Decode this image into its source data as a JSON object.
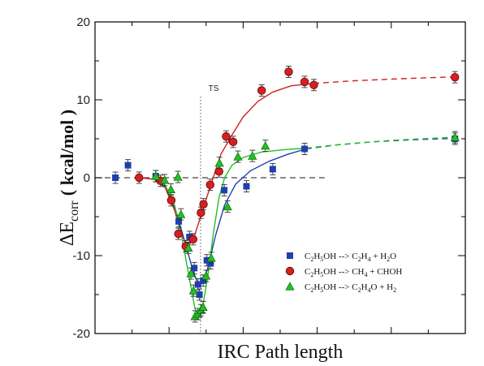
{
  "chart_data": {
    "type": "scatter",
    "title": "",
    "xlabel": "IRC Path length",
    "ylabel": {
      "prefix": "ΔE",
      "sub": "corr",
      "unit": "( kcal/mol )"
    },
    "xlim": [
      0,
      100
    ],
    "ylim": [
      -20,
      20
    ],
    "yticks": [
      -20,
      -10,
      0,
      10,
      20
    ],
    "x_ticks_labeled": false,
    "grid": false,
    "legend_position": "bottom-right",
    "reference_line": {
      "y": 0,
      "style": "dashed",
      "x_end": 62
    },
    "ts_line": {
      "x": 28.5,
      "label": "TS"
    },
    "series": [
      {
        "name": "C2H5OH --> C2H4 + H2O",
        "legend_parts": [
          {
            "t": "C"
          },
          {
            "t": "2",
            "sub": true
          },
          {
            "t": "H"
          },
          {
            "t": "5",
            "sub": true
          },
          {
            "t": "OH --> C"
          },
          {
            "t": "2",
            "sub": true
          },
          {
            "t": "H"
          },
          {
            "t": "4",
            "sub": true
          },
          {
            "t": " + H"
          },
          {
            "t": "2",
            "sub": true
          },
          {
            "t": "O"
          }
        ],
        "color": "#1f3fb0",
        "marker": "square",
        "points": [
          {
            "x": 5.5,
            "y": 0.0
          },
          {
            "x": 8.9,
            "y": 1.6
          },
          {
            "x": 16.4,
            "y": 0.2
          },
          {
            "x": 22.6,
            "y": -5.6
          },
          {
            "x": 25.5,
            "y": -7.6
          },
          {
            "x": 26.8,
            "y": -11.6
          },
          {
            "x": 27.8,
            "y": -13.7
          },
          {
            "x": 28.2,
            "y": -15.0
          },
          {
            "x": 29.2,
            "y": -13.2
          },
          {
            "x": 30.2,
            "y": -10.6
          },
          {
            "x": 31.2,
            "y": -11.0
          },
          {
            "x": 34.9,
            "y": -1.6
          },
          {
            "x": 40.9,
            "y": -1.1
          },
          {
            "x": 48.0,
            "y": 1.1
          },
          {
            "x": 56.6,
            "y": 3.7
          },
          {
            "x": 97.2,
            "y": 5.0
          }
        ],
        "fit": [
          {
            "x": 16.0,
            "y": -0.1
          },
          {
            "x": 19.0,
            "y": -1.2
          },
          {
            "x": 22.0,
            "y": -4.5
          },
          {
            "x": 24.5,
            "y": -8.6
          },
          {
            "x": 26.5,
            "y": -12.0
          },
          {
            "x": 28.0,
            "y": -13.8
          },
          {
            "x": 29.2,
            "y": -13.5
          },
          {
            "x": 30.5,
            "y": -11.5
          },
          {
            "x": 32.5,
            "y": -7.5
          },
          {
            "x": 35.0,
            "y": -3.5
          },
          {
            "x": 38.0,
            "y": -0.8
          },
          {
            "x": 42.0,
            "y": 0.9
          },
          {
            "x": 47.0,
            "y": 2.1
          },
          {
            "x": 52.0,
            "y": 3.0
          },
          {
            "x": 57.0,
            "y": 3.7
          }
        ],
        "fit_ext": [
          {
            "x": 57.0,
            "y": 3.7
          },
          {
            "x": 65.0,
            "y": 4.2
          },
          {
            "x": 75.0,
            "y": 4.6
          },
          {
            "x": 85.0,
            "y": 4.85
          },
          {
            "x": 97.0,
            "y": 5.05
          }
        ]
      },
      {
        "name": "C2H5OH --> CH4 + CHOH",
        "legend_parts": [
          {
            "t": "C"
          },
          {
            "t": "2",
            "sub": true
          },
          {
            "t": "H"
          },
          {
            "t": "5",
            "sub": true
          },
          {
            "t": "OH --> CH"
          },
          {
            "t": "4",
            "sub": true
          },
          {
            "t": " + CHOH"
          }
        ],
        "color": "#d42020",
        "marker": "circle",
        "points": [
          {
            "x": 11.9,
            "y": 0.0
          },
          {
            "x": 17.7,
            "y": -0.4
          },
          {
            "x": 20.6,
            "y": -2.9
          },
          {
            "x": 22.5,
            "y": -7.2
          },
          {
            "x": 24.5,
            "y": -8.8
          },
          {
            "x": 26.5,
            "y": -7.9
          },
          {
            "x": 28.6,
            "y": -4.5
          },
          {
            "x": 29.3,
            "y": -3.4
          },
          {
            "x": 31.1,
            "y": -0.9
          },
          {
            "x": 33.5,
            "y": 0.8
          },
          {
            "x": 35.4,
            "y": 5.3
          },
          {
            "x": 37.3,
            "y": 4.6
          },
          {
            "x": 45.0,
            "y": 11.2
          },
          {
            "x": 52.3,
            "y": 13.6
          },
          {
            "x": 56.6,
            "y": 12.3
          },
          {
            "x": 59.1,
            "y": 11.9
          },
          {
            "x": 97.2,
            "y": 12.9
          }
        ],
        "fit": [
          {
            "x": 12.0,
            "y": 0.0
          },
          {
            "x": 16.0,
            "y": -0.2
          },
          {
            "x": 19.0,
            "y": -1.3
          },
          {
            "x": 21.5,
            "y": -4.2
          },
          {
            "x": 23.5,
            "y": -7.5
          },
          {
            "x": 25.0,
            "y": -8.8
          },
          {
            "x": 26.5,
            "y": -8.0
          },
          {
            "x": 28.5,
            "y": -5.0
          },
          {
            "x": 31.0,
            "y": -1.3
          },
          {
            "x": 34.0,
            "y": 3.0
          },
          {
            "x": 37.0,
            "y": 5.5
          },
          {
            "x": 40.0,
            "y": 7.8
          },
          {
            "x": 44.0,
            "y": 9.8
          },
          {
            "x": 48.0,
            "y": 11.0
          },
          {
            "x": 53.0,
            "y": 11.8
          },
          {
            "x": 59.0,
            "y": 12.1
          }
        ],
        "fit_ext": [
          {
            "x": 59.0,
            "y": 12.1
          },
          {
            "x": 70.0,
            "y": 12.45
          },
          {
            "x": 82.0,
            "y": 12.7
          },
          {
            "x": 97.0,
            "y": 12.95
          }
        ]
      },
      {
        "name": "C2H5OH --> C2H4O + H2",
        "legend_parts": [
          {
            "t": "C"
          },
          {
            "t": "2",
            "sub": true
          },
          {
            "t": "H"
          },
          {
            "t": "5",
            "sub": true
          },
          {
            "t": "OH --> C"
          },
          {
            "t": "2",
            "sub": true
          },
          {
            "t": "H"
          },
          {
            "t": "4",
            "sub": true
          },
          {
            "t": "O + H"
          },
          {
            "t": "2",
            "sub": true
          }
        ],
        "color": "#22c022",
        "marker": "triangle",
        "points": [
          {
            "x": 16.4,
            "y": 0.2
          },
          {
            "x": 18.8,
            "y": -0.3
          },
          {
            "x": 20.5,
            "y": -1.5
          },
          {
            "x": 22.4,
            "y": 0.1
          },
          {
            "x": 23.2,
            "y": -4.7
          },
          {
            "x": 25.2,
            "y": -9.0
          },
          {
            "x": 25.9,
            "y": -12.3
          },
          {
            "x": 26.6,
            "y": -14.5
          },
          {
            "x": 27.0,
            "y": -17.8
          },
          {
            "x": 27.8,
            "y": -17.5
          },
          {
            "x": 28.6,
            "y": -17.0
          },
          {
            "x": 29.2,
            "y": -16.6
          },
          {
            "x": 30.0,
            "y": -12.6
          },
          {
            "x": 31.4,
            "y": -10.3
          },
          {
            "x": 33.6,
            "y": 1.9
          },
          {
            "x": 35.8,
            "y": -3.7
          },
          {
            "x": 38.6,
            "y": 2.7
          },
          {
            "x": 42.5,
            "y": 2.8
          },
          {
            "x": 46.0,
            "y": 4.1
          },
          {
            "x": 97.2,
            "y": 5.2
          }
        ],
        "fit": [
          {
            "x": 16.0,
            "y": 0.0
          },
          {
            "x": 19.0,
            "y": -1.0
          },
          {
            "x": 21.5,
            "y": -3.5
          },
          {
            "x": 23.5,
            "y": -7.8
          },
          {
            "x": 25.5,
            "y": -13.0
          },
          {
            "x": 27.0,
            "y": -16.8
          },
          {
            "x": 28.0,
            "y": -17.8
          },
          {
            "x": 29.0,
            "y": -16.8
          },
          {
            "x": 30.5,
            "y": -12.5
          },
          {
            "x": 32.0,
            "y": -7.0
          },
          {
            "x": 33.5,
            "y": -2.5
          },
          {
            "x": 35.0,
            "y": 0.0
          },
          {
            "x": 37.0,
            "y": 1.6
          },
          {
            "x": 40.0,
            "y": 2.6
          },
          {
            "x": 45.0,
            "y": 3.3
          },
          {
            "x": 51.0,
            "y": 3.6
          },
          {
            "x": 57.0,
            "y": 3.8
          }
        ],
        "fit_ext": [
          {
            "x": 57.0,
            "y": 3.8
          },
          {
            "x": 67.0,
            "y": 4.3
          },
          {
            "x": 80.0,
            "y": 4.8
          },
          {
            "x": 97.0,
            "y": 5.2
          }
        ]
      }
    ]
  }
}
